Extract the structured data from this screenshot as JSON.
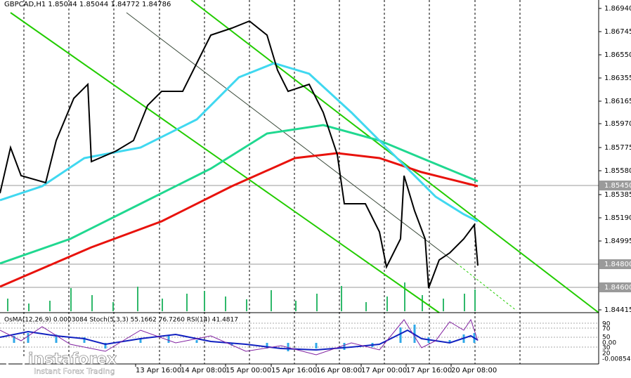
{
  "header": {
    "symbol_info": "GBPCAD,H1  1.85044 1.85044 1.84772 1.84786"
  },
  "price_axis": {
    "ticks": [
      "1.86940",
      "1.86745",
      "1.86550",
      "1.86355",
      "1.86165",
      "1.85970",
      "1.85775",
      "1.85580",
      "1.85385",
      "1.85190",
      "1.84995",
      "1.84415"
    ],
    "highlighted": [
      "1.85450",
      "1.84800",
      "1.84600"
    ]
  },
  "time_axis": {
    "labels": [
      "13 Apr 16:00",
      "14 Apr 08:00",
      "15 Apr 00:00",
      "15 Apr 16:00",
      "16 Apr 08:00",
      "17 Apr 00:00",
      "17 Apr 16:00",
      "20 Apr 08:00"
    ]
  },
  "indicator": {
    "header": "OsMA(12,26,9) 0.0003084  Stoch(5,3,3) 55.1662 76.7260  RSI(14) 41.4817",
    "levels": [
      "90",
      "70",
      "50",
      "0.00",
      "30",
      "20",
      "-0.00854"
    ]
  },
  "logo": {
    "name": "instaforex",
    "tagline": "Instant Forex Trading"
  }
}
